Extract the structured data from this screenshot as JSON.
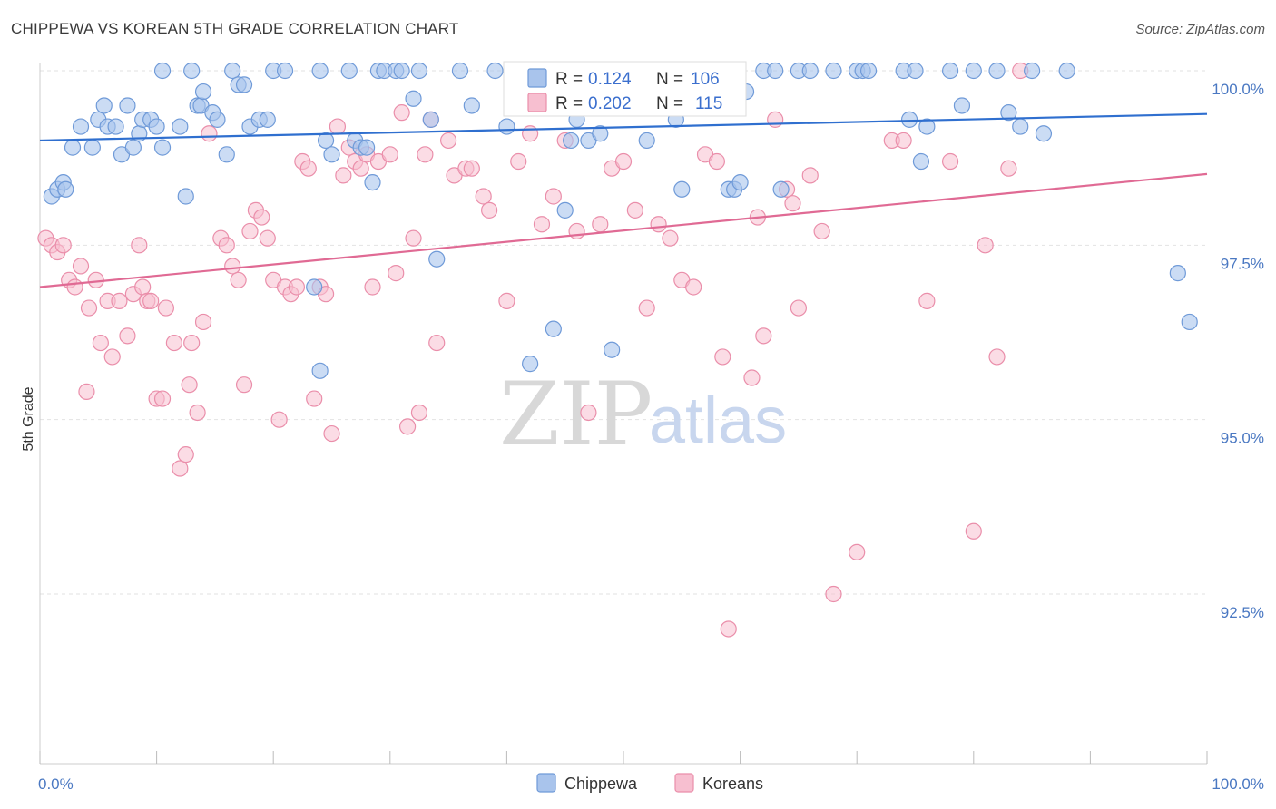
{
  "title": "CHIPPEWA VS KOREAN 5TH GRADE CORRELATION CHART",
  "source": "Source: ZipAtlas.com",
  "watermark": {
    "zip": "ZIP",
    "atlas": "atlas"
  },
  "colors": {
    "chippewa_fill": "#a9c4ec",
    "chippewa_stroke": "#6f9ad8",
    "chippewa_line": "#2f6fcf",
    "korean_fill": "#f7bfd0",
    "korean_stroke": "#ea8eaa",
    "korean_line": "#e06a94",
    "tick_label": "#4a78c2",
    "grid": "#e2e2e2"
  },
  "legend_top": {
    "rows": [
      {
        "r_label": "R =",
        "r_value": "0.124",
        "n_label": "N =",
        "n_value": "106"
      },
      {
        "r_label": "R =",
        "r_value": "0.202",
        "n_label": "N =",
        "n_value": "115"
      }
    ]
  },
  "chart_data": {
    "type": "scatter",
    "title": "CHIPPEWA VS KOREAN 5TH GRADE CORRELATION CHART",
    "xlabel": "",
    "ylabel": "5th Grade",
    "xlim": [
      0,
      100
    ],
    "ylim": [
      90.2,
      100.4
    ],
    "x_tick_labels": [
      "0.0%",
      "100.0%"
    ],
    "y_ticks": [
      92.5,
      95.0,
      97.5,
      100.0
    ],
    "y_tick_labels": [
      "92.5%",
      "95.0%",
      "97.5%",
      "100.0%"
    ],
    "legend_placement": "bottom-center",
    "grid": true,
    "series": [
      {
        "name": "Chippewa",
        "r": 0.124,
        "n": 106,
        "trend": {
          "x": [
            0,
            100
          ],
          "y": [
            99.0,
            99.38
          ]
        },
        "points": [
          [
            1,
            98.2
          ],
          [
            1.5,
            98.3
          ],
          [
            2,
            98.4
          ],
          [
            2.2,
            98.3
          ],
          [
            2.8,
            98.9
          ],
          [
            3.5,
            99.2
          ],
          [
            4.5,
            98.9
          ],
          [
            5,
            99.3
          ],
          [
            5.5,
            99.5
          ],
          [
            5.8,
            99.2
          ],
          [
            6.5,
            99.2
          ],
          [
            7,
            98.8
          ],
          [
            7.5,
            99.5
          ],
          [
            8,
            98.9
          ],
          [
            8.5,
            99.1
          ],
          [
            8.8,
            99.3
          ],
          [
            9.5,
            99.3
          ],
          [
            10,
            99.2
          ],
          [
            10.5,
            98.9
          ],
          [
            10.5,
            100
          ],
          [
            12,
            99.2
          ],
          [
            12.5,
            98.2
          ],
          [
            13,
            100
          ],
          [
            13.5,
            99.5
          ],
          [
            13.8,
            99.5
          ],
          [
            14,
            99.7
          ],
          [
            14.8,
            99.4
          ],
          [
            15.2,
            99.3
          ],
          [
            16,
            98.8
          ],
          [
            16.5,
            100
          ],
          [
            17,
            99.8
          ],
          [
            17.5,
            99.8
          ],
          [
            18,
            99.2
          ],
          [
            18.8,
            99.3
          ],
          [
            19.5,
            99.3
          ],
          [
            20,
            100
          ],
          [
            21,
            100
          ],
          [
            23.5,
            96.9
          ],
          [
            24,
            100
          ],
          [
            24,
            95.7
          ],
          [
            24.5,
            99.0
          ],
          [
            25,
            98.8
          ],
          [
            26.5,
            100
          ],
          [
            27,
            99.0
          ],
          [
            27.5,
            98.9
          ],
          [
            28,
            98.9
          ],
          [
            28.5,
            98.4
          ],
          [
            29,
            100
          ],
          [
            29.5,
            100
          ],
          [
            30.5,
            100
          ],
          [
            31,
            100
          ],
          [
            32,
            99.6
          ],
          [
            32.5,
            100
          ],
          [
            33.5,
            99.3
          ],
          [
            34,
            97.3
          ],
          [
            36,
            100
          ],
          [
            37,
            99.5
          ],
          [
            39,
            100
          ],
          [
            40,
            99.2
          ],
          [
            40.5,
            99.5
          ],
          [
            42,
            95.8
          ],
          [
            43,
            100
          ],
          [
            43.5,
            100
          ],
          [
            44,
            96.3
          ],
          [
            45,
            98.0
          ],
          [
            45.5,
            99.0
          ],
          [
            46,
            99.3
          ],
          [
            47,
            99.0
          ],
          [
            48,
            99.1
          ],
          [
            49,
            96.0
          ],
          [
            50,
            100
          ],
          [
            51,
            100
          ],
          [
            52,
            99.0
          ],
          [
            52.5,
            100
          ],
          [
            54.5,
            99.3
          ],
          [
            55,
            98.3
          ],
          [
            57.5,
            100
          ],
          [
            59,
            98.3
          ],
          [
            59.5,
            98.3
          ],
          [
            60,
            98.4
          ],
          [
            60.5,
            99.7
          ],
          [
            62,
            100
          ],
          [
            63,
            100
          ],
          [
            63.5,
            98.3
          ],
          [
            65,
            100
          ],
          [
            66,
            100
          ],
          [
            68,
            100
          ],
          [
            70,
            100
          ],
          [
            70.5,
            100
          ],
          [
            71,
            100
          ],
          [
            74,
            100
          ],
          [
            74.5,
            99.3
          ],
          [
            75,
            100
          ],
          [
            75.5,
            98.7
          ],
          [
            76,
            99.2
          ],
          [
            78,
            100
          ],
          [
            79,
            99.5
          ],
          [
            80,
            100
          ],
          [
            82,
            100
          ],
          [
            83,
            99.4
          ],
          [
            84,
            99.2
          ],
          [
            85,
            100
          ],
          [
            86,
            99.1
          ],
          [
            88,
            100
          ],
          [
            97.5,
            97.1
          ],
          [
            98.5,
            96.4
          ]
        ]
      },
      {
        "name": "Koreans",
        "r": 0.202,
        "n": 115,
        "trend": {
          "x": [
            0,
            100
          ],
          "y": [
            96.9,
            98.52
          ]
        },
        "points": [
          [
            0.5,
            97.6
          ],
          [
            1,
            97.5
          ],
          [
            1.5,
            97.4
          ],
          [
            2,
            97.5
          ],
          [
            2.5,
            97.0
          ],
          [
            3,
            96.9
          ],
          [
            3.5,
            97.2
          ],
          [
            4,
            95.4
          ],
          [
            4.2,
            96.6
          ],
          [
            4.8,
            97.0
          ],
          [
            5.2,
            96.1
          ],
          [
            5.8,
            96.7
          ],
          [
            6.2,
            95.9
          ],
          [
            6.8,
            96.7
          ],
          [
            7.5,
            96.2
          ],
          [
            8,
            96.8
          ],
          [
            8.5,
            97.5
          ],
          [
            8.8,
            96.9
          ],
          [
            9.2,
            96.7
          ],
          [
            9.5,
            96.7
          ],
          [
            10,
            95.3
          ],
          [
            10.5,
            95.3
          ],
          [
            10.8,
            96.6
          ],
          [
            11.5,
            96.1
          ],
          [
            12,
            94.3
          ],
          [
            12.5,
            94.5
          ],
          [
            12.8,
            95.5
          ],
          [
            13,
            96.1
          ],
          [
            13.5,
            95.1
          ],
          [
            14,
            96.4
          ],
          [
            14.5,
            99.1
          ],
          [
            15.5,
            97.6
          ],
          [
            16,
            97.5
          ],
          [
            16.5,
            97.2
          ],
          [
            17,
            97.0
          ],
          [
            17.5,
            95.5
          ],
          [
            18,
            97.7
          ],
          [
            18.5,
            98.0
          ],
          [
            19,
            97.9
          ],
          [
            19.5,
            97.6
          ],
          [
            20,
            97.0
          ],
          [
            20.5,
            95.0
          ],
          [
            21,
            96.9
          ],
          [
            21.5,
            96.8
          ],
          [
            22,
            96.9
          ],
          [
            22.5,
            98.7
          ],
          [
            23,
            98.6
          ],
          [
            23.5,
            95.3
          ],
          [
            24,
            96.9
          ],
          [
            24.5,
            96.8
          ],
          [
            25,
            94.8
          ],
          [
            25.5,
            99.2
          ],
          [
            26,
            98.5
          ],
          [
            26.5,
            98.9
          ],
          [
            27,
            98.7
          ],
          [
            27.5,
            98.6
          ],
          [
            28,
            98.8
          ],
          [
            28.5,
            96.9
          ],
          [
            29,
            98.7
          ],
          [
            30,
            98.8
          ],
          [
            30.5,
            97.1
          ],
          [
            31,
            99.4
          ],
          [
            31.5,
            94.9
          ],
          [
            32,
            97.6
          ],
          [
            32.5,
            95.1
          ],
          [
            33,
            98.8
          ],
          [
            33.5,
            99.3
          ],
          [
            34,
            96.1
          ],
          [
            35,
            99.0
          ],
          [
            35.5,
            98.5
          ],
          [
            36.5,
            98.6
          ],
          [
            37,
            98.6
          ],
          [
            38,
            98.2
          ],
          [
            38.5,
            98.0
          ],
          [
            40,
            96.7
          ],
          [
            41,
            98.7
          ],
          [
            42,
            99.1
          ],
          [
            43,
            97.8
          ],
          [
            44,
            98.2
          ],
          [
            45,
            99.0
          ],
          [
            46,
            97.7
          ],
          [
            47,
            95.1
          ],
          [
            48,
            97.8
          ],
          [
            49,
            98.6
          ],
          [
            50,
            98.7
          ],
          [
            51,
            98.0
          ],
          [
            52,
            96.6
          ],
          [
            53,
            97.8
          ],
          [
            54,
            97.6
          ],
          [
            55,
            97.0
          ],
          [
            56,
            96.9
          ],
          [
            57,
            98.8
          ],
          [
            58,
            98.7
          ],
          [
            58.5,
            95.9
          ],
          [
            59,
            92.0
          ],
          [
            61,
            95.6
          ],
          [
            61.5,
            97.9
          ],
          [
            62,
            96.2
          ],
          [
            63,
            99.3
          ],
          [
            64,
            98.3
          ],
          [
            64.5,
            98.1
          ],
          [
            65,
            96.6
          ],
          [
            66,
            98.5
          ],
          [
            67,
            97.7
          ],
          [
            68,
            92.5
          ],
          [
            70,
            93.1
          ],
          [
            73,
            99.0
          ],
          [
            74,
            99.0
          ],
          [
            76,
            96.7
          ],
          [
            78,
            98.7
          ],
          [
            80,
            93.4
          ],
          [
            81,
            97.5
          ],
          [
            82,
            95.9
          ],
          [
            83,
            98.6
          ],
          [
            84,
            100
          ]
        ]
      }
    ]
  }
}
